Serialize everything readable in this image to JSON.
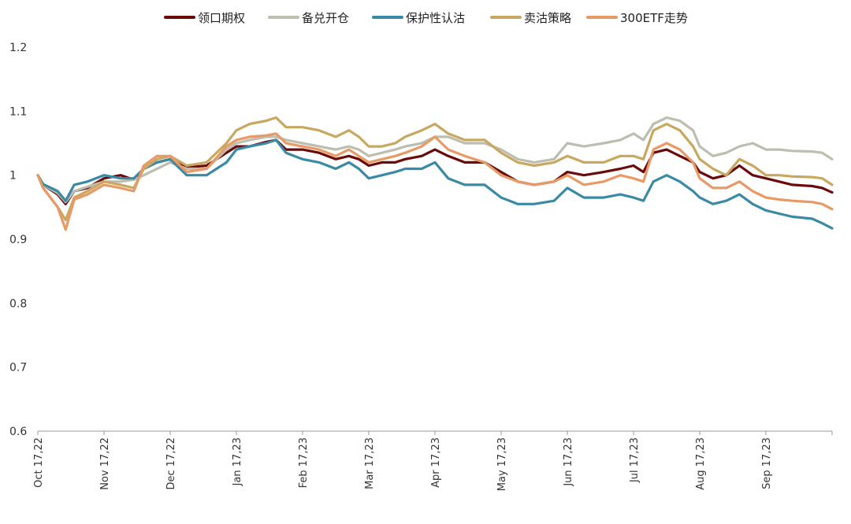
{
  "chart_data": {
    "type": "line",
    "title": "",
    "xlabel": "",
    "ylabel": "",
    "ylim": [
      0.6,
      1.2
    ],
    "yticks": [
      0.6,
      0.7,
      0.8,
      0.9,
      1,
      1.1,
      1.2
    ],
    "ytick_labels": [
      "0.6",
      "0.7",
      "0.8",
      "0.9",
      "1",
      "1.1",
      "1.2"
    ],
    "x_axis": {
      "labels": [
        "Oct 17,22",
        "Nov 17,22",
        "Dec 17,22",
        "Jan 17,23",
        "Feb 17,23",
        "Mar 17,23",
        "Apr 17,23",
        "May 17,23",
        "Jun 17,23",
        "Jul 17,23",
        "Aug 17,23",
        "Sep 17,23"
      ],
      "tick_index": [
        0,
        1,
        2,
        3,
        4,
        5,
        6,
        7,
        8,
        9,
        10,
        11
      ],
      "xlim": [
        0,
        12
      ]
    },
    "legend_position": "top-center",
    "series": [
      {
        "name": "领口期权",
        "color": "#6b0a0a",
        "points": [
          [
            0,
            1.0
          ],
          [
            0.08,
            0.985
          ],
          [
            0.3,
            0.97
          ],
          [
            0.42,
            0.955
          ],
          [
            0.55,
            0.975
          ],
          [
            0.75,
            0.98
          ],
          [
            1.0,
            0.995
          ],
          [
            1.25,
            1.0
          ],
          [
            1.45,
            0.993
          ],
          [
            1.6,
            1.01
          ],
          [
            1.8,
            1.02
          ],
          [
            2.0,
            1.025
          ],
          [
            2.25,
            1.012
          ],
          [
            2.55,
            1.015
          ],
          [
            2.85,
            1.035
          ],
          [
            3.0,
            1.045
          ],
          [
            3.2,
            1.045
          ],
          [
            3.45,
            1.052
          ],
          [
            3.6,
            1.055
          ],
          [
            3.75,
            1.04
          ],
          [
            4.0,
            1.04
          ],
          [
            4.25,
            1.035
          ],
          [
            4.5,
            1.025
          ],
          [
            4.7,
            1.03
          ],
          [
            4.85,
            1.025
          ],
          [
            5.0,
            1.015
          ],
          [
            5.2,
            1.02
          ],
          [
            5.4,
            1.02
          ],
          [
            5.55,
            1.025
          ],
          [
            5.8,
            1.03
          ],
          [
            6.0,
            1.04
          ],
          [
            6.2,
            1.03
          ],
          [
            6.45,
            1.02
          ],
          [
            6.75,
            1.02
          ],
          [
            7.0,
            1.005
          ],
          [
            7.25,
            0.99
          ],
          [
            7.5,
            0.985
          ],
          [
            7.8,
            0.99
          ],
          [
            8.0,
            1.005
          ],
          [
            8.25,
            1.0
          ],
          [
            8.55,
            1.005
          ],
          [
            8.8,
            1.01
          ],
          [
            9.0,
            1.015
          ],
          [
            9.15,
            1.005
          ],
          [
            9.3,
            1.035
          ],
          [
            9.5,
            1.04
          ],
          [
            9.7,
            1.03
          ],
          [
            9.9,
            1.02
          ],
          [
            10.0,
            1.005
          ],
          [
            10.2,
            0.995
          ],
          [
            10.4,
            1.0
          ],
          [
            10.6,
            1.015
          ],
          [
            10.8,
            1.0
          ],
          [
            11.0,
            0.995
          ],
          [
            11.2,
            0.99
          ],
          [
            11.4,
            0.985
          ],
          [
            11.7,
            0.983
          ],
          [
            11.85,
            0.98
          ],
          [
            12.0,
            0.973
          ]
        ]
      },
      {
        "name": "备兑开仓",
        "color": "#bdbdb0",
        "points": [
          [
            0,
            1.0
          ],
          [
            0.08,
            0.985
          ],
          [
            0.3,
            0.972
          ],
          [
            0.42,
            0.958
          ],
          [
            0.55,
            0.975
          ],
          [
            0.75,
            0.982
          ],
          [
            1.0,
            0.99
          ],
          [
            1.25,
            0.99
          ],
          [
            1.45,
            0.993
          ],
          [
            1.6,
            1.0
          ],
          [
            1.8,
            1.01
          ],
          [
            2.0,
            1.02
          ],
          [
            2.25,
            1.01
          ],
          [
            2.55,
            1.01
          ],
          [
            2.85,
            1.04
          ],
          [
            3.0,
            1.05
          ],
          [
            3.2,
            1.055
          ],
          [
            3.45,
            1.06
          ],
          [
            3.6,
            1.06
          ],
          [
            3.75,
            1.055
          ],
          [
            4.0,
            1.05
          ],
          [
            4.25,
            1.045
          ],
          [
            4.5,
            1.04
          ],
          [
            4.7,
            1.045
          ],
          [
            4.85,
            1.04
          ],
          [
            5.0,
            1.03
          ],
          [
            5.2,
            1.035
          ],
          [
            5.4,
            1.04
          ],
          [
            5.55,
            1.045
          ],
          [
            5.8,
            1.05
          ],
          [
            6.0,
            1.06
          ],
          [
            6.2,
            1.06
          ],
          [
            6.45,
            1.05
          ],
          [
            6.75,
            1.05
          ],
          [
            7.0,
            1.04
          ],
          [
            7.25,
            1.025
          ],
          [
            7.5,
            1.02
          ],
          [
            7.8,
            1.025
          ],
          [
            8.0,
            1.05
          ],
          [
            8.25,
            1.045
          ],
          [
            8.55,
            1.05
          ],
          [
            8.8,
            1.055
          ],
          [
            9.0,
            1.065
          ],
          [
            9.15,
            1.055
          ],
          [
            9.3,
            1.08
          ],
          [
            9.5,
            1.09
          ],
          [
            9.7,
            1.085
          ],
          [
            9.9,
            1.07
          ],
          [
            10.0,
            1.045
          ],
          [
            10.2,
            1.03
          ],
          [
            10.4,
            1.035
          ],
          [
            10.6,
            1.045
          ],
          [
            10.8,
            1.05
          ],
          [
            11.0,
            1.04
          ],
          [
            11.2,
            1.04
          ],
          [
            11.4,
            1.038
          ],
          [
            11.7,
            1.037
          ],
          [
            11.85,
            1.035
          ],
          [
            12.0,
            1.025
          ]
        ]
      },
      {
        "name": "保护性认沽",
        "color": "#3a8aa6",
        "points": [
          [
            0,
            1.0
          ],
          [
            0.08,
            0.986
          ],
          [
            0.3,
            0.975
          ],
          [
            0.42,
            0.96
          ],
          [
            0.55,
            0.985
          ],
          [
            0.75,
            0.99
          ],
          [
            1.0,
            1.0
          ],
          [
            1.25,
            0.995
          ],
          [
            1.45,
            0.995
          ],
          [
            1.6,
            1.01
          ],
          [
            1.8,
            1.02
          ],
          [
            2.0,
            1.025
          ],
          [
            2.25,
            1.0
          ],
          [
            2.55,
            1.0
          ],
          [
            2.85,
            1.02
          ],
          [
            3.0,
            1.04
          ],
          [
            3.2,
            1.045
          ],
          [
            3.45,
            1.05
          ],
          [
            3.6,
            1.055
          ],
          [
            3.75,
            1.035
          ],
          [
            4.0,
            1.025
          ],
          [
            4.25,
            1.02
          ],
          [
            4.5,
            1.01
          ],
          [
            4.7,
            1.02
          ],
          [
            4.85,
            1.01
          ],
          [
            5.0,
            0.995
          ],
          [
            5.2,
            1.0
          ],
          [
            5.4,
            1.005
          ],
          [
            5.55,
            1.01
          ],
          [
            5.8,
            1.01
          ],
          [
            6.0,
            1.02
          ],
          [
            6.2,
            0.995
          ],
          [
            6.45,
            0.985
          ],
          [
            6.75,
            0.985
          ],
          [
            7.0,
            0.965
          ],
          [
            7.25,
            0.955
          ],
          [
            7.5,
            0.955
          ],
          [
            7.8,
            0.96
          ],
          [
            8.0,
            0.98
          ],
          [
            8.25,
            0.965
          ],
          [
            8.55,
            0.965
          ],
          [
            8.8,
            0.97
          ],
          [
            9.0,
            0.965
          ],
          [
            9.15,
            0.96
          ],
          [
            9.3,
            0.99
          ],
          [
            9.5,
            1.0
          ],
          [
            9.7,
            0.99
          ],
          [
            9.9,
            0.975
          ],
          [
            10.0,
            0.965
          ],
          [
            10.2,
            0.955
          ],
          [
            10.4,
            0.96
          ],
          [
            10.6,
            0.97
          ],
          [
            10.8,
            0.955
          ],
          [
            11.0,
            0.945
          ],
          [
            11.2,
            0.94
          ],
          [
            11.4,
            0.935
          ],
          [
            11.7,
            0.932
          ],
          [
            11.85,
            0.925
          ],
          [
            12.0,
            0.917
          ]
        ]
      },
      {
        "name": "卖沽策略",
        "color": "#c8a860",
        "points": [
          [
            0,
            1.0
          ],
          [
            0.08,
            0.98
          ],
          [
            0.3,
            0.95
          ],
          [
            0.42,
            0.93
          ],
          [
            0.55,
            0.965
          ],
          [
            0.75,
            0.975
          ],
          [
            1.0,
            0.99
          ],
          [
            1.25,
            0.985
          ],
          [
            1.45,
            0.98
          ],
          [
            1.6,
            1.01
          ],
          [
            1.8,
            1.025
          ],
          [
            2.0,
            1.03
          ],
          [
            2.25,
            1.015
          ],
          [
            2.55,
            1.02
          ],
          [
            2.85,
            1.05
          ],
          [
            3.0,
            1.07
          ],
          [
            3.2,
            1.08
          ],
          [
            3.45,
            1.085
          ],
          [
            3.6,
            1.09
          ],
          [
            3.75,
            1.075
          ],
          [
            4.0,
            1.075
          ],
          [
            4.25,
            1.07
          ],
          [
            4.5,
            1.06
          ],
          [
            4.7,
            1.07
          ],
          [
            4.85,
            1.06
          ],
          [
            5.0,
            1.045
          ],
          [
            5.2,
            1.045
          ],
          [
            5.4,
            1.05
          ],
          [
            5.55,
            1.06
          ],
          [
            5.8,
            1.07
          ],
          [
            6.0,
            1.08
          ],
          [
            6.2,
            1.065
          ],
          [
            6.45,
            1.055
          ],
          [
            6.75,
            1.055
          ],
          [
            7.0,
            1.035
          ],
          [
            7.25,
            1.02
          ],
          [
            7.5,
            1.015
          ],
          [
            7.8,
            1.02
          ],
          [
            8.0,
            1.03
          ],
          [
            8.25,
            1.02
          ],
          [
            8.55,
            1.02
          ],
          [
            8.8,
            1.03
          ],
          [
            9.0,
            1.03
          ],
          [
            9.15,
            1.025
          ],
          [
            9.3,
            1.07
          ],
          [
            9.5,
            1.08
          ],
          [
            9.7,
            1.07
          ],
          [
            9.9,
            1.045
          ],
          [
            10.0,
            1.025
          ],
          [
            10.2,
            1.01
          ],
          [
            10.4,
            1.0
          ],
          [
            10.6,
            1.025
          ],
          [
            10.8,
            1.015
          ],
          [
            11.0,
            1.0
          ],
          [
            11.2,
            1.0
          ],
          [
            11.4,
            0.998
          ],
          [
            11.7,
            0.997
          ],
          [
            11.85,
            0.995
          ],
          [
            12.0,
            0.985
          ]
        ]
      },
      {
        "name": "300ETF走势",
        "color": "#e89a66",
        "points": [
          [
            0,
            1.0
          ],
          [
            0.08,
            0.98
          ],
          [
            0.3,
            0.95
          ],
          [
            0.42,
            0.915
          ],
          [
            0.55,
            0.962
          ],
          [
            0.75,
            0.97
          ],
          [
            1.0,
            0.985
          ],
          [
            1.25,
            0.98
          ],
          [
            1.45,
            0.975
          ],
          [
            1.6,
            1.015
          ],
          [
            1.8,
            1.03
          ],
          [
            2.0,
            1.03
          ],
          [
            2.25,
            1.005
          ],
          [
            2.55,
            1.01
          ],
          [
            2.85,
            1.045
          ],
          [
            3.0,
            1.055
          ],
          [
            3.2,
            1.06
          ],
          [
            3.45,
            1.062
          ],
          [
            3.6,
            1.065
          ],
          [
            3.75,
            1.05
          ],
          [
            4.0,
            1.045
          ],
          [
            4.25,
            1.04
          ],
          [
            4.5,
            1.03
          ],
          [
            4.7,
            1.04
          ],
          [
            4.85,
            1.03
          ],
          [
            5.0,
            1.02
          ],
          [
            5.2,
            1.025
          ],
          [
            5.4,
            1.03
          ],
          [
            5.55,
            1.035
          ],
          [
            5.8,
            1.045
          ],
          [
            6.0,
            1.06
          ],
          [
            6.2,
            1.04
          ],
          [
            6.45,
            1.03
          ],
          [
            6.75,
            1.02
          ],
          [
            7.0,
            1.0
          ],
          [
            7.25,
            0.99
          ],
          [
            7.5,
            0.985
          ],
          [
            7.8,
            0.99
          ],
          [
            8.0,
            1.0
          ],
          [
            8.25,
            0.985
          ],
          [
            8.55,
            0.99
          ],
          [
            8.8,
            1.0
          ],
          [
            9.0,
            0.995
          ],
          [
            9.15,
            0.99
          ],
          [
            9.3,
            1.04
          ],
          [
            9.5,
            1.05
          ],
          [
            9.7,
            1.04
          ],
          [
            9.9,
            1.02
          ],
          [
            10.0,
            0.995
          ],
          [
            10.2,
            0.98
          ],
          [
            10.4,
            0.98
          ],
          [
            10.6,
            0.99
          ],
          [
            10.8,
            0.975
          ],
          [
            11.0,
            0.965
          ],
          [
            11.2,
            0.962
          ],
          [
            11.4,
            0.96
          ],
          [
            11.7,
            0.958
          ],
          [
            11.85,
            0.955
          ],
          [
            12.0,
            0.947
          ]
        ]
      }
    ]
  }
}
